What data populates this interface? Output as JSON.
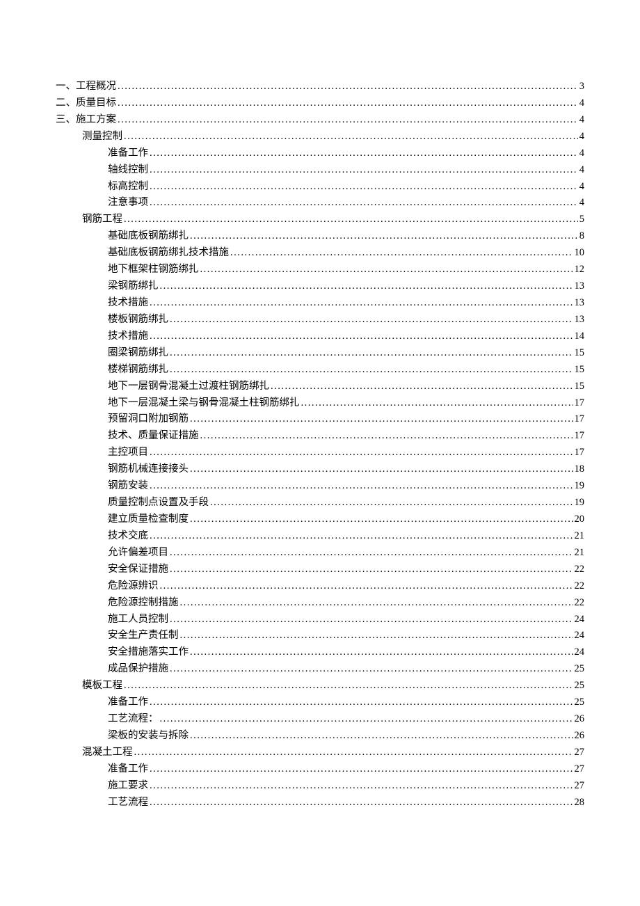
{
  "toc": {
    "dot_char": ".",
    "entries": [
      {
        "level": 1,
        "label": "一、工程概况",
        "page": "3"
      },
      {
        "level": 1,
        "label": "二、质量目标",
        "page": "4"
      },
      {
        "level": 1,
        "label": "三、施工方案",
        "page": "4"
      },
      {
        "level": 2,
        "label": "测量控制",
        "page": "4"
      },
      {
        "level": 3,
        "label": "准备工作",
        "page": "4"
      },
      {
        "level": 3,
        "label": "轴线控制",
        "page": "4"
      },
      {
        "level": 3,
        "label": "标高控制",
        "page": "4"
      },
      {
        "level": 3,
        "label": "注意事项",
        "page": "4"
      },
      {
        "level": 2,
        "label": "钢筋工程",
        "page": "5"
      },
      {
        "level": 3,
        "label": "基础底板钢筋绑扎",
        "page": "8"
      },
      {
        "level": 3,
        "label": "基础底板钢筋绑扎技术措施",
        "page": "10"
      },
      {
        "level": 3,
        "label": "地下框架柱钢筋绑扎",
        "page": "12"
      },
      {
        "level": 3,
        "label": "梁钢筋绑扎",
        "page": "13"
      },
      {
        "level": 3,
        "label": "技术措施",
        "page": "13"
      },
      {
        "level": 3,
        "label": "楼板钢筋绑扎",
        "page": "13"
      },
      {
        "level": 3,
        "label": "技术措施",
        "page": "14"
      },
      {
        "level": 3,
        "label": "圈梁钢筋绑扎",
        "page": "15"
      },
      {
        "level": 3,
        "label": "楼梯钢筋绑扎",
        "page": "15"
      },
      {
        "level": 3,
        "label": "地下一层钢骨混凝土过渡柱钢筋绑扎",
        "page": "15"
      },
      {
        "level": 3,
        "label": "地下一层混凝土梁与钢骨混凝土柱钢筋绑扎",
        "page": "17"
      },
      {
        "level": 3,
        "label": "预留洞口附加钢筋",
        "page": "17"
      },
      {
        "level": 3,
        "label": "技术、质量保证措施",
        "page": "17"
      },
      {
        "level": 3,
        "label": "主控项目",
        "page": "17"
      },
      {
        "level": 3,
        "label": "钢筋机械连接接头",
        "page": "18"
      },
      {
        "level": 3,
        "label": "钢筋安装",
        "page": "19"
      },
      {
        "level": 3,
        "label": "质量控制点设置及手段",
        "page": "19"
      },
      {
        "level": 3,
        "label": "建立质量检查制度",
        "page": "20"
      },
      {
        "level": 3,
        "label": "技术交底",
        "page": "21"
      },
      {
        "level": 3,
        "label": "允许偏差项目",
        "page": "21"
      },
      {
        "level": 3,
        "label": "安全保证措施",
        "page": "22"
      },
      {
        "level": 3,
        "label": "危险源辨识",
        "page": "22"
      },
      {
        "level": 3,
        "label": "危险源控制措施",
        "page": "22"
      },
      {
        "level": 3,
        "label": "施工人员控制",
        "page": "24"
      },
      {
        "level": 3,
        "label": "安全生产责任制",
        "page": "24"
      },
      {
        "level": 3,
        "label": "安全措施落实工作",
        "page": "24"
      },
      {
        "level": 3,
        "label": "成品保护措施",
        "page": "25"
      },
      {
        "level": 2,
        "label": "模板工程",
        "page": "25"
      },
      {
        "level": 3,
        "label": "准备工作",
        "page": "25"
      },
      {
        "level": 3,
        "label": "工艺流程：",
        "page": "26"
      },
      {
        "level": 3,
        "label": "梁板的安装与拆除",
        "page": "26"
      },
      {
        "level": 2,
        "label": "混凝土工程",
        "page": "27"
      },
      {
        "level": 3,
        "label": "准备工作",
        "page": "27"
      },
      {
        "level": 3,
        "label": "施工要求",
        "page": "27"
      },
      {
        "level": 3,
        "label": "工艺流程",
        "page": "28"
      }
    ]
  }
}
